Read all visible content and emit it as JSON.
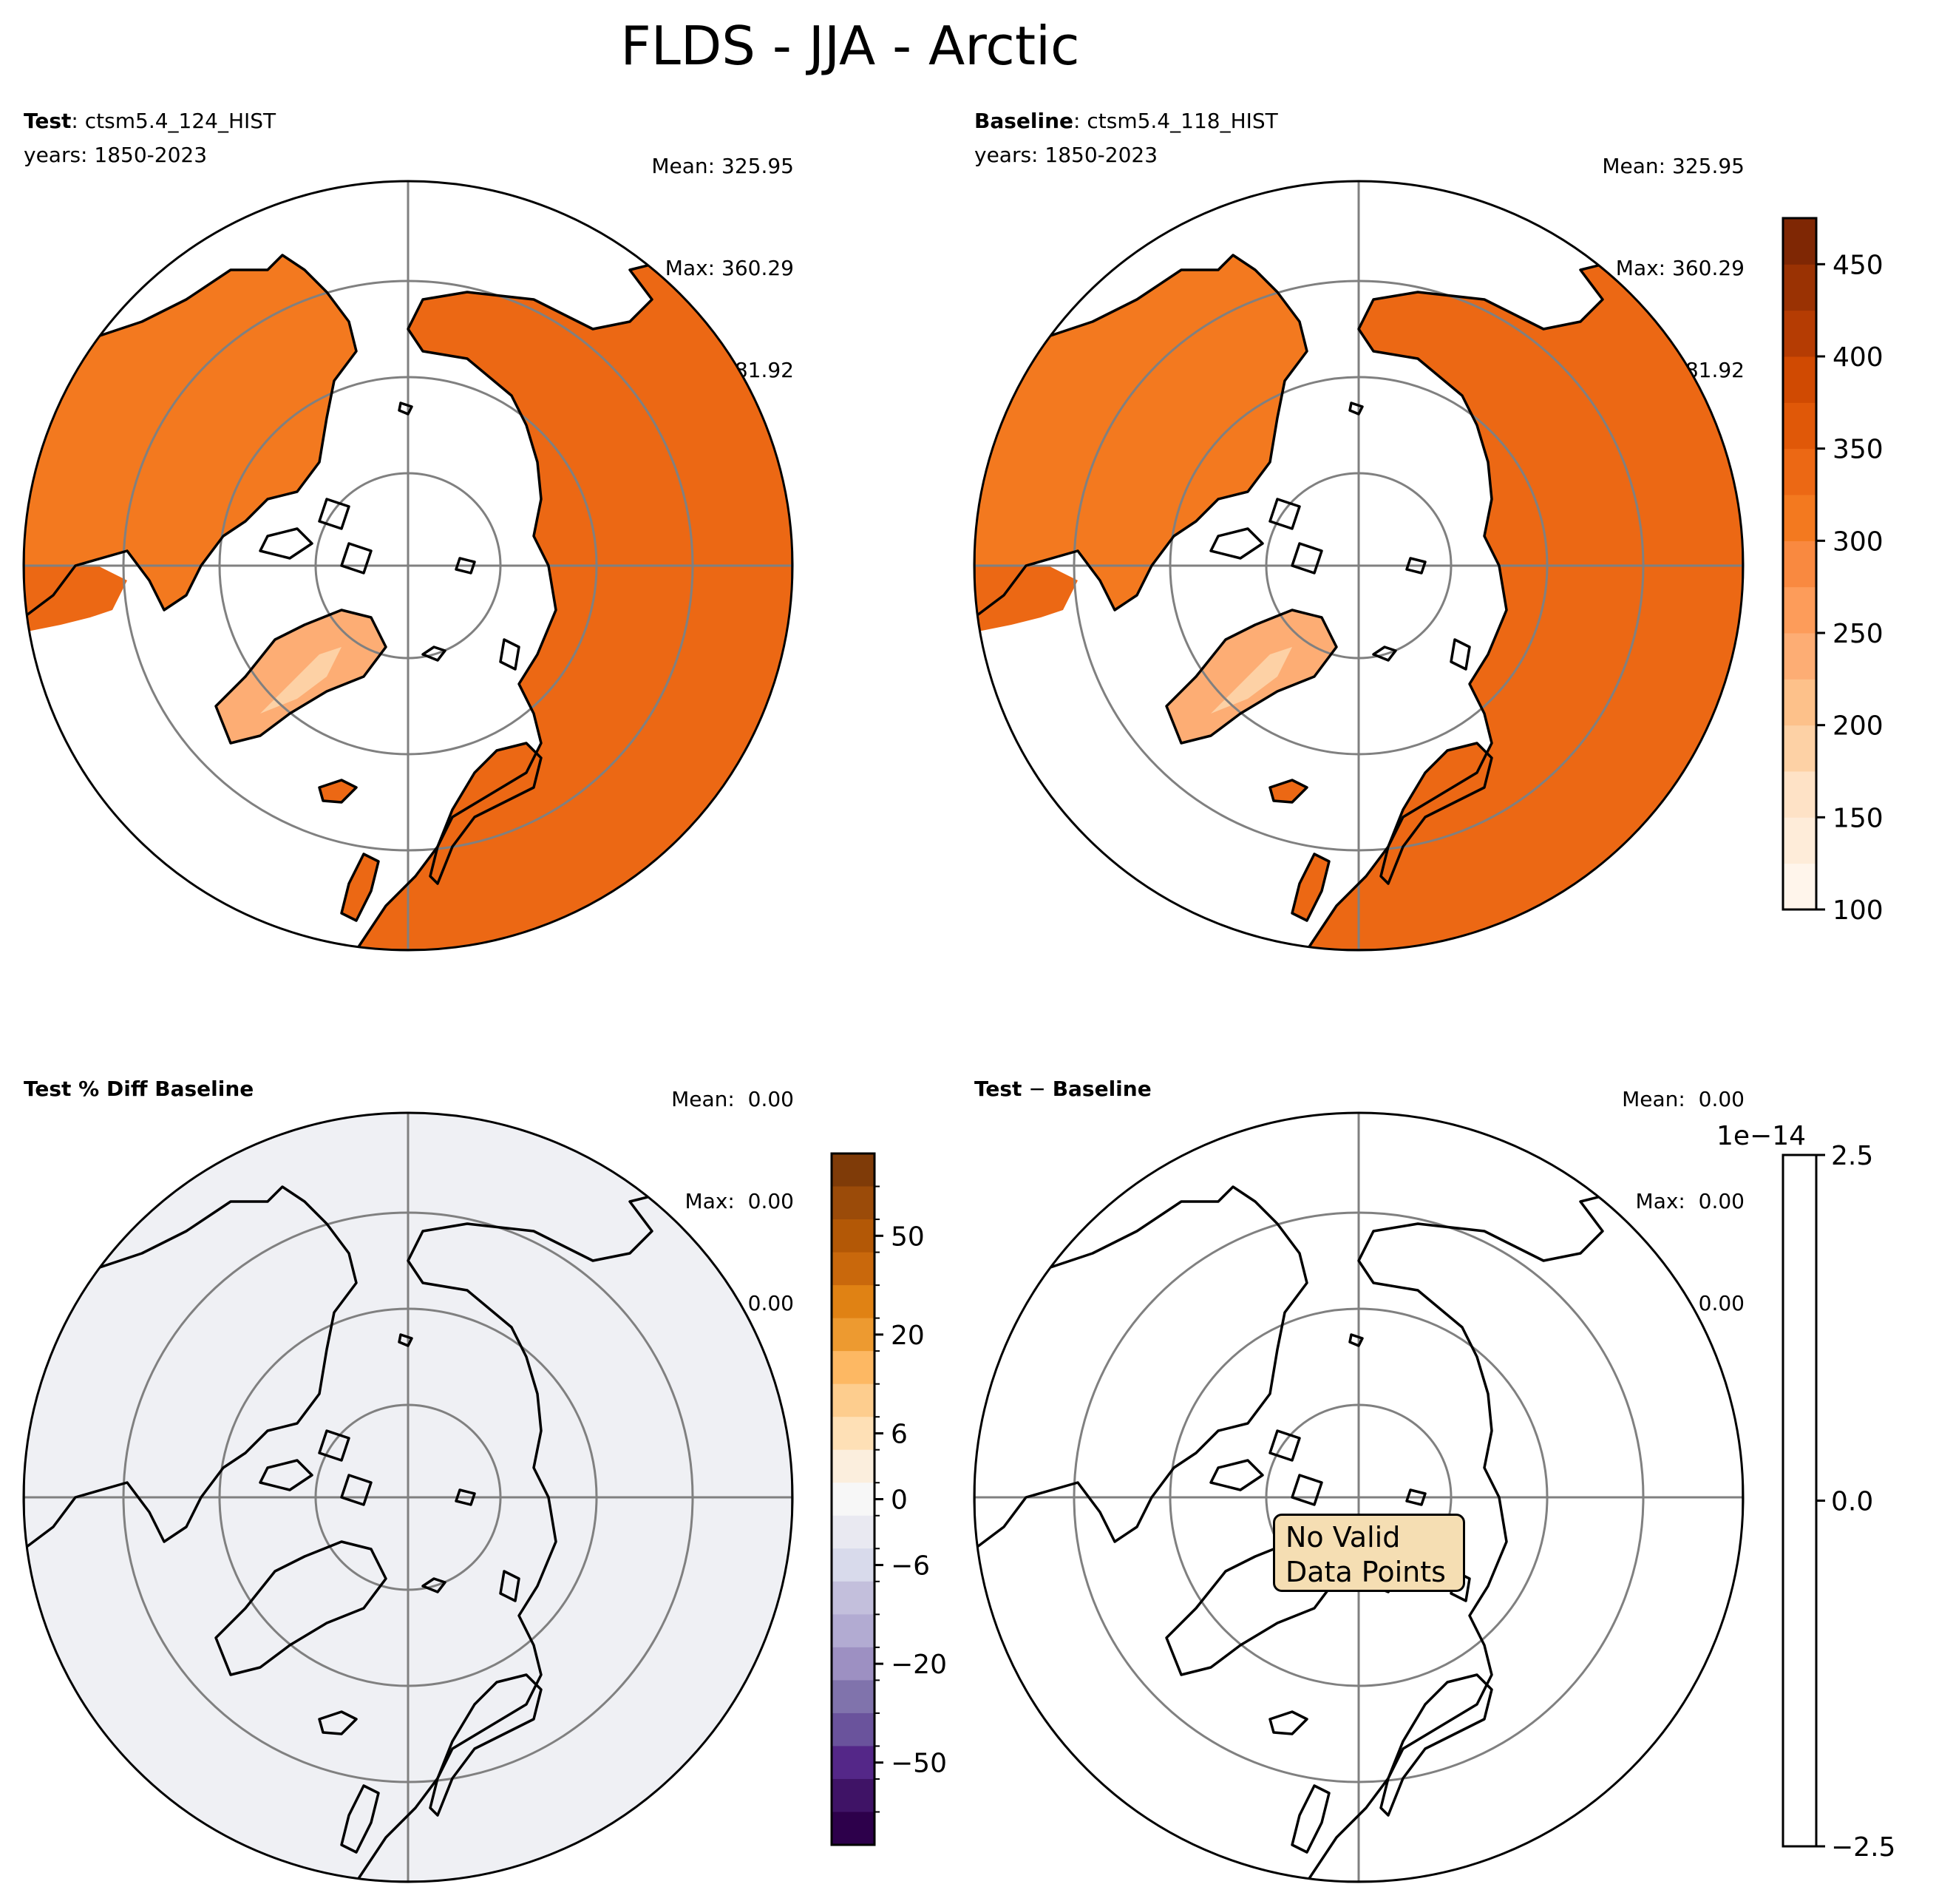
{
  "title": "FLDS - JJA - Arctic",
  "panels": [
    {
      "id": "test",
      "label_bold": "Test",
      "label_sep": ": ",
      "label_rest": "ctsm5.4_124_HIST",
      "years": "years: 1850-2023",
      "stats": {
        "mean": "Mean: 325.95",
        "max": "Max: 360.29",
        "min": "Min: 281.92"
      }
    },
    {
      "id": "baseline",
      "label_bold": "Baseline",
      "label_sep": ": ",
      "label_rest": "ctsm5.4_118_HIST",
      "years": "years: 1850-2023",
      "stats": {
        "mean": "Mean: 325.95",
        "max": "Max: 360.29",
        "min": "Min: 281.92"
      }
    },
    {
      "id": "pct-diff",
      "label_bold": "Test % Diff Baseline",
      "stats": {
        "mean": "Mean:  0.00",
        "max": "Max:  0.00",
        "min": "Min:  0.00"
      }
    },
    {
      "id": "diff",
      "label_bold": "Test",
      "label_sep": " − ",
      "label_rest": "Baseline",
      "stats": {
        "mean": "Mean:  0.00",
        "max": "Max:  0.00",
        "min": "Min:  0.00"
      },
      "annotation": [
        "No Valid",
        "Data Points"
      ]
    }
  ],
  "colorbars": {
    "abs": {
      "colormap": "Oranges",
      "range": [
        100,
        475
      ],
      "ticks": [
        "100",
        "150",
        "200",
        "250",
        "300",
        "350",
        "400",
        "450"
      ],
      "tick_values": [
        100,
        150,
        200,
        250,
        300,
        350,
        400,
        450
      ],
      "colors": [
        "#fff5eb",
        "#feecd9",
        "#fee2c6",
        "#fdd1a5",
        "#fdc18a",
        "#fdad74",
        "#fd9c5a",
        "#f98940",
        "#f3791f",
        "#ec6814",
        "#e05808",
        "#d04a02",
        "#b53c03",
        "#9a3203",
        "#7f2704"
      ]
    },
    "pct": {
      "colormap": "PuOr_r",
      "ticks": [
        "50",
        "20",
        "6",
        "0",
        "−6",
        "−20",
        "−50"
      ],
      "colors_top_to_bottom": [
        "#7f3b08",
        "#9b4b09",
        "#b35806",
        "#c9680c",
        "#e08214",
        "#ed9a30",
        "#fdb863",
        "#fdcd8e",
        "#fee0b6",
        "#fbeedd",
        "#f7f7f7",
        "#e9e9f1",
        "#d8daeb",
        "#c3bfdc",
        "#b2abd2",
        "#9d90c2",
        "#8073ac",
        "#6a539c",
        "#542788",
        "#3f1366",
        "#2d004b"
      ]
    },
    "diff": {
      "exponent": "1e−14",
      "ticks": [
        "2.5",
        "0.0",
        "−2.5"
      ]
    }
  },
  "map_colors": {
    "land_abs": "#ec6814",
    "ocean_abs": "#ffffff",
    "pct_fill": "#eff0f4",
    "grid": "#808080"
  }
}
